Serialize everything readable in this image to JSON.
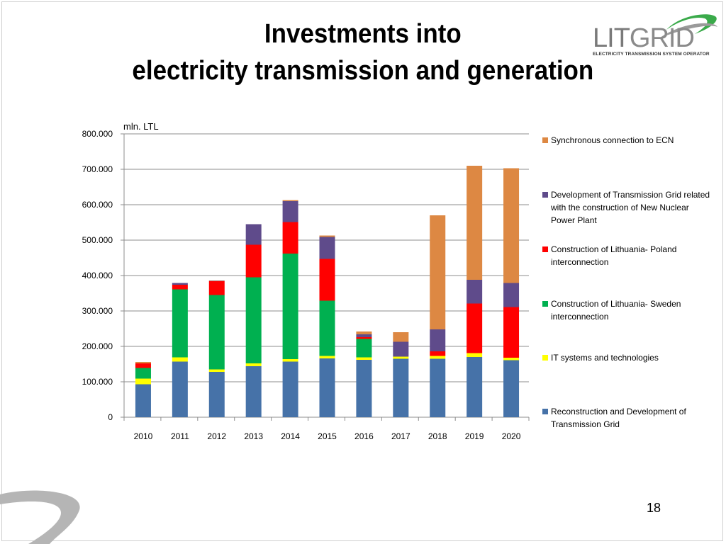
{
  "slide": {
    "title_line1": "Investments into",
    "title_line2": "electricity transmission and generation",
    "page_number": "18"
  },
  "logo": {
    "text_lit": "LIT",
    "text_grid": "GRID",
    "subtitle": "ELECTRICITY TRANSMISSION SYSTEM OPERATOR"
  },
  "chart_data": {
    "type": "bar",
    "stacked": true,
    "ylabel": "mln. LTL",
    "ylim": [
      0,
      800
    ],
    "yticks": [
      0,
      100,
      200,
      300,
      400,
      500,
      600,
      700,
      800
    ],
    "ytick_labels": [
      "0",
      "100.000",
      "200.000",
      "300.000",
      "400.000",
      "500.000",
      "600.000",
      "700.000",
      "800.000"
    ],
    "grid": true,
    "legend_position": "right",
    "categories": [
      "2010",
      "2011",
      "2012",
      "2013",
      "2014",
      "2015",
      "2016",
      "2017",
      "2018",
      "2019",
      "2020"
    ],
    "series": [
      {
        "name": "Reconstruction and Development of Transmission Grid",
        "color": "#4672A8",
        "values": [
          93,
          157,
          128,
          144,
          157,
          166,
          162,
          165,
          165,
          170,
          161
        ]
      },
      {
        "name": "IT systems and technologies",
        "color": "#FFFF00",
        "values": [
          16,
          12,
          7,
          8,
          7,
          7,
          7,
          6,
          8,
          11,
          7
        ]
      },
      {
        "name": "Construction of Lithuania- Sweden interconnection",
        "color": "#00B050",
        "values": [
          30,
          192,
          210,
          243,
          298,
          156,
          52,
          0,
          0,
          0,
          0
        ]
      },
      {
        "name": "Construction of Lithuania- Poland interconnection",
        "color": "#FF0000",
        "values": [
          13,
          13,
          39,
          92,
          89,
          118,
          5,
          0,
          13,
          140,
          143
        ]
      },
      {
        "name": "Development of Transmission Grid related with the construction of New Nuclear Power Plant",
        "color": "#5F4B8B",
        "values": [
          0,
          5,
          1,
          58,
          59,
          62,
          8,
          42,
          62,
          67,
          68
        ]
      },
      {
        "name": "Synchronous connection to ECN",
        "color": "#DD8843",
        "values": [
          4,
          0,
          1,
          0,
          3,
          4,
          8,
          27,
          322,
          322,
          324
        ]
      }
    ],
    "legend_order": [
      5,
      4,
      3,
      2,
      1,
      0
    ]
  }
}
